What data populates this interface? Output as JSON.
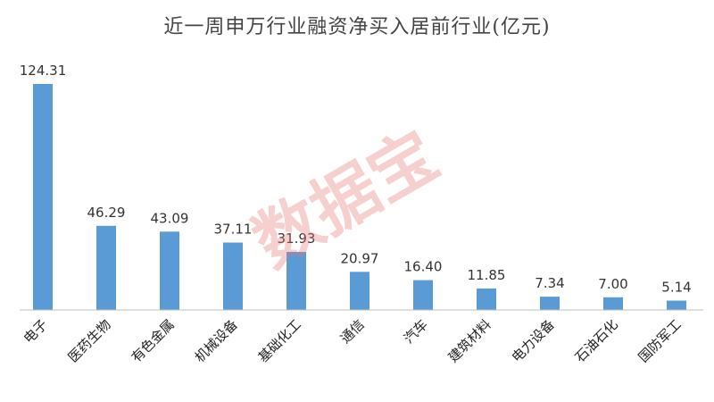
{
  "chart_data": {
    "type": "bar",
    "title": "近一周申万行业融资净买入居前行业(亿元)",
    "xlabel": "",
    "ylabel": "",
    "categories": [
      "电子",
      "医药生物",
      "有色金属",
      "机械设备",
      "基础化工",
      "通信",
      "汽车",
      "建筑材料",
      "电力设备",
      "石油石化",
      "国防军工"
    ],
    "values": [
      124.31,
      46.29,
      43.09,
      37.11,
      31.93,
      20.97,
      16.4,
      11.85,
      7.34,
      7.0,
      5.14
    ],
    "value_labels": [
      "124.31",
      "46.29",
      "43.09",
      "37.11",
      "31.93",
      "20.97",
      "16.40",
      "11.85",
      "7.34",
      "7.00",
      "5.14"
    ],
    "ylim": [
      0,
      124.31
    ],
    "bar_color": "#5B9BD5",
    "axis_color": "#BFBFBF",
    "grid": false,
    "watermark": "数据宝",
    "watermark_color": "#E67878"
  }
}
